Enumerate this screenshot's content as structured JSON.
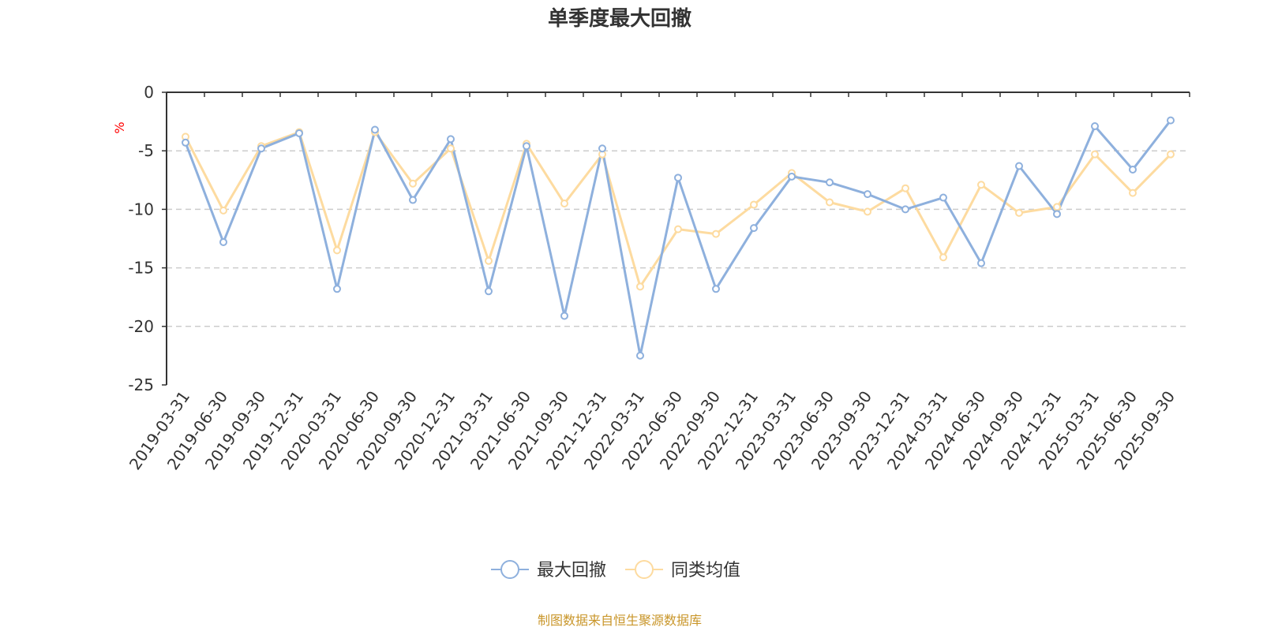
{
  "chart_data": {
    "type": "line",
    "title": "单季度最大回撤",
    "ylabel": "%",
    "ylim": [
      -25,
      0
    ],
    "yticks": [
      0,
      -5,
      -10,
      -15,
      -20,
      -25
    ],
    "categories": [
      "2019-03-31",
      "2019-06-30",
      "2019-09-30",
      "2019-12-31",
      "2020-03-31",
      "2020-06-30",
      "2020-09-30",
      "2020-12-31",
      "2021-03-31",
      "2021-06-30",
      "2021-09-30",
      "2021-12-31",
      "2022-03-31",
      "2022-06-30",
      "2022-09-30",
      "2022-12-31",
      "2023-03-31",
      "2023-06-30",
      "2023-09-30",
      "2023-12-31",
      "2024-03-31",
      "2024-06-30",
      "2024-09-30",
      "2024-12-31",
      "2025-03-31",
      "2025-06-30",
      "2025-09-30"
    ],
    "series": [
      {
        "name": "最大回撤",
        "color": "#8EB0DD",
        "values": [
          -4.3,
          -12.8,
          -4.8,
          -3.5,
          -16.8,
          -3.2,
          -9.2,
          -4.0,
          -17.0,
          -4.6,
          -19.1,
          -4.8,
          -22.5,
          -7.3,
          -16.8,
          -11.6,
          -7.2,
          -7.7,
          -8.7,
          -10.0,
          -9.0,
          -14.6,
          -6.3,
          -10.4,
          -2.9,
          -6.6,
          -2.4
        ]
      },
      {
        "name": "同类均值",
        "color": "#FDDBA0",
        "values": [
          -3.8,
          -10.1,
          -4.6,
          -3.4,
          -13.5,
          -3.4,
          -7.8,
          -4.8,
          -14.4,
          -4.4,
          -9.5,
          -5.3,
          -16.6,
          -11.7,
          -12.1,
          -9.6,
          -6.9,
          -9.4,
          -10.2,
          -8.2,
          -14.1,
          -7.9,
          -10.3,
          -9.8,
          -5.3,
          -8.6,
          -5.3
        ]
      }
    ],
    "grid": true,
    "legend_position": "bottom-center"
  },
  "colors": {
    "unit_label": "#ff0000",
    "source_text": "#C9962A",
    "axis": "#333333",
    "grid": "#cccccc"
  },
  "footer": {
    "source": "制图数据来自恒生聚源数据库"
  }
}
